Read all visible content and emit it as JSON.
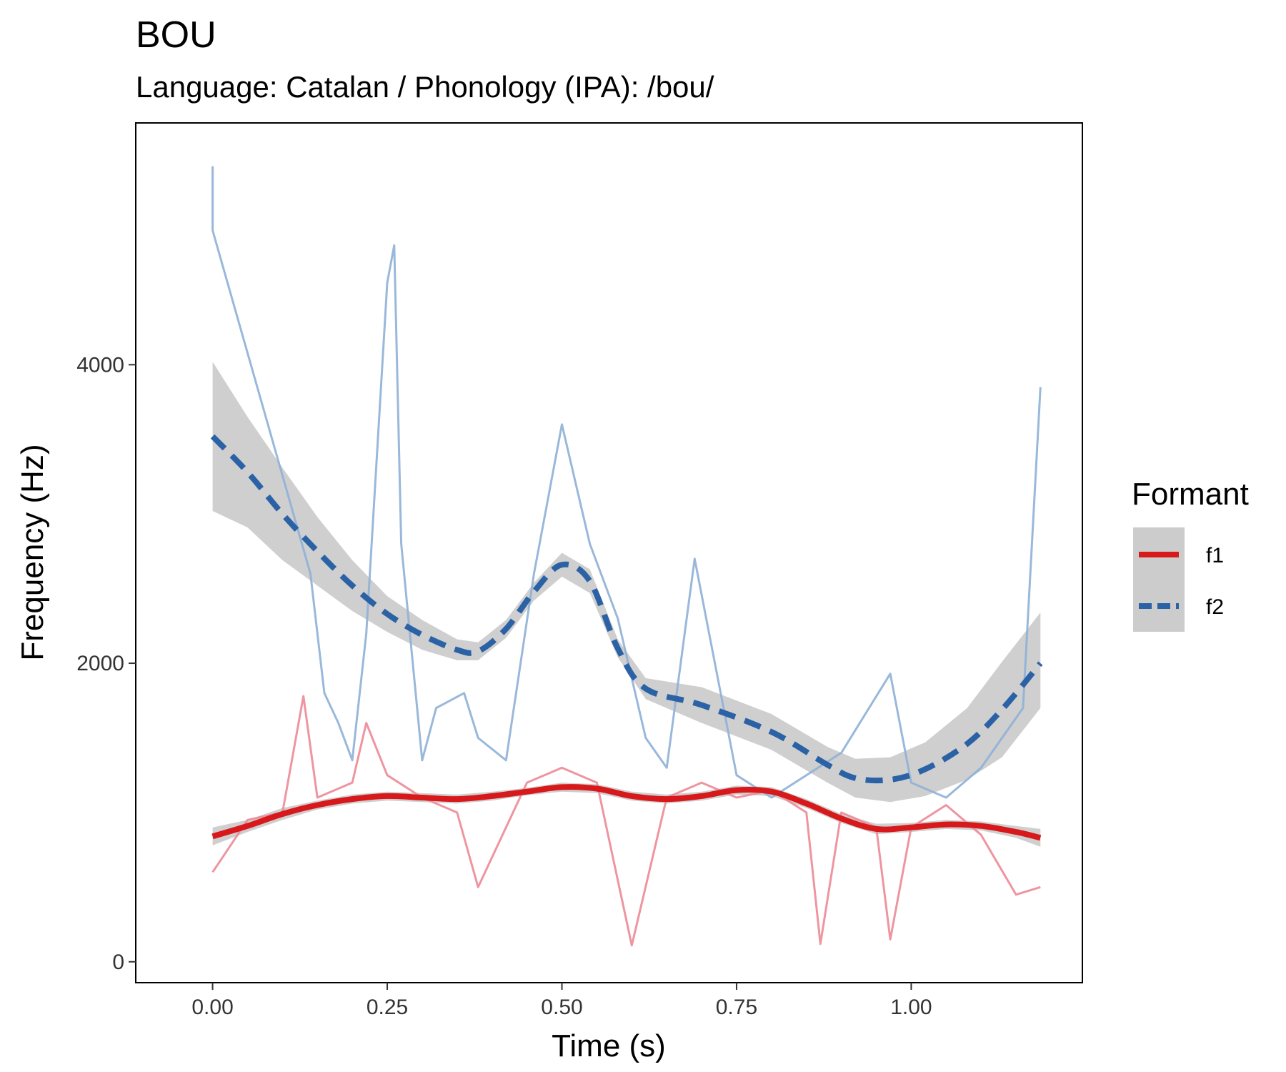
{
  "chart_data": {
    "type": "line",
    "title": "BOU",
    "subtitle": "Language: Catalan / Phonology (IPA): /bou/",
    "xlabel": "Time (s)",
    "ylabel": "Frequency (Hz)",
    "xlim": [
      -0.11,
      1.245
    ],
    "ylim": [
      -140,
      5620
    ],
    "x_ticks": [
      0.0,
      0.25,
      0.5,
      0.75,
      1.0
    ],
    "x_tick_labels": [
      "0.00",
      "0.25",
      "0.50",
      "0.75",
      "1.00"
    ],
    "y_ticks": [
      0,
      2000,
      4000
    ],
    "y_tick_labels": [
      "0",
      "2000",
      "4000"
    ],
    "grid": false,
    "legend": {
      "title": "Formant",
      "position": "right"
    },
    "series": [
      {
        "name": "f1",
        "color": "#d7191c",
        "raw_color": "#ec8a96",
        "line_style": "solid",
        "smooth": {
          "x": [
            0.0,
            0.05,
            0.1,
            0.15,
            0.2,
            0.25,
            0.3,
            0.35,
            0.4,
            0.45,
            0.5,
            0.55,
            0.6,
            0.65,
            0.7,
            0.75,
            0.8,
            0.85,
            0.9,
            0.95,
            1.0,
            1.05,
            1.1,
            1.15,
            1.185
          ],
          "y": [
            840,
            910,
            990,
            1050,
            1090,
            1110,
            1100,
            1090,
            1110,
            1140,
            1170,
            1160,
            1110,
            1090,
            1110,
            1150,
            1140,
            1060,
            960,
            890,
            900,
            920,
            910,
            870,
            830
          ],
          "ci_low": [
            780,
            870,
            950,
            1020,
            1060,
            1080,
            1070,
            1060,
            1080,
            1115,
            1140,
            1130,
            1080,
            1060,
            1080,
            1120,
            1110,
            1030,
            930,
            855,
            870,
            890,
            880,
            830,
            770
          ],
          "ci_high": [
            900,
            950,
            1030,
            1080,
            1120,
            1140,
            1130,
            1120,
            1140,
            1165,
            1200,
            1190,
            1140,
            1120,
            1140,
            1180,
            1170,
            1090,
            990,
            925,
            930,
            950,
            940,
            910,
            890
          ]
        },
        "raw_summary": {
          "x": [
            0.0,
            0.05,
            0.1,
            0.13,
            0.15,
            0.2,
            0.22,
            0.25,
            0.3,
            0.35,
            0.38,
            0.45,
            0.5,
            0.55,
            0.6,
            0.65,
            0.7,
            0.75,
            0.8,
            0.85,
            0.87,
            0.9,
            0.95,
            0.97,
            1.0,
            1.05,
            1.1,
            1.15,
            1.185
          ],
          "y": [
            600,
            950,
            1000,
            1780,
            1100,
            1200,
            1600,
            1250,
            1100,
            1000,
            500,
            1200,
            1300,
            1200,
            110,
            1100,
            1200,
            1100,
            1150,
            1000,
            120,
            1000,
            900,
            150,
            900,
            1050,
            850,
            450,
            500
          ]
        }
      },
      {
        "name": "f2",
        "color": "#2b62a6",
        "raw_color": "#8eb0d6",
        "line_style": "dashed",
        "smooth": {
          "x": [
            0.0,
            0.05,
            0.1,
            0.15,
            0.2,
            0.25,
            0.3,
            0.35,
            0.38,
            0.42,
            0.46,
            0.5,
            0.54,
            0.58,
            0.62,
            0.7,
            0.8,
            0.88,
            0.92,
            0.97,
            1.02,
            1.08,
            1.13,
            1.185
          ],
          "y": [
            3520,
            3280,
            3000,
            2750,
            2520,
            2330,
            2190,
            2090,
            2080,
            2230,
            2480,
            2660,
            2550,
            2100,
            1830,
            1720,
            1540,
            1320,
            1230,
            1220,
            1290,
            1460,
            1690,
            2000
          ],
          "ci_low": [
            3020,
            2910,
            2690,
            2520,
            2350,
            2210,
            2090,
            2020,
            2020,
            2170,
            2420,
            2580,
            2470,
            2040,
            1760,
            1600,
            1420,
            1200,
            1100,
            1070,
            1110,
            1220,
            1370,
            1700
          ],
          "ci_high": [
            4020,
            3650,
            3310,
            2980,
            2690,
            2450,
            2290,
            2160,
            2140,
            2290,
            2540,
            2740,
            2630,
            2160,
            1900,
            1840,
            1660,
            1440,
            1360,
            1370,
            1470,
            1700,
            2010,
            2340
          ]
        },
        "raw_summary": {
          "x": [
            0.0,
            0.0,
            0.14,
            0.16,
            0.18,
            0.2,
            0.22,
            0.25,
            0.26,
            0.27,
            0.3,
            0.32,
            0.36,
            0.38,
            0.42,
            0.46,
            0.5,
            0.54,
            0.58,
            0.62,
            0.65,
            0.69,
            0.75,
            0.8,
            0.9,
            0.97,
            1.0,
            1.05,
            1.1,
            1.16,
            1.185
          ],
          "y": [
            5330,
            4900,
            2600,
            1800,
            1600,
            1350,
            2200,
            4550,
            4800,
            2800,
            1350,
            1700,
            1800,
            1500,
            1350,
            2600,
            3600,
            2800,
            2300,
            1500,
            1300,
            2700,
            1250,
            1100,
            1400,
            1930,
            1200,
            1100,
            1300,
            1700,
            3850
          ]
        }
      }
    ]
  }
}
